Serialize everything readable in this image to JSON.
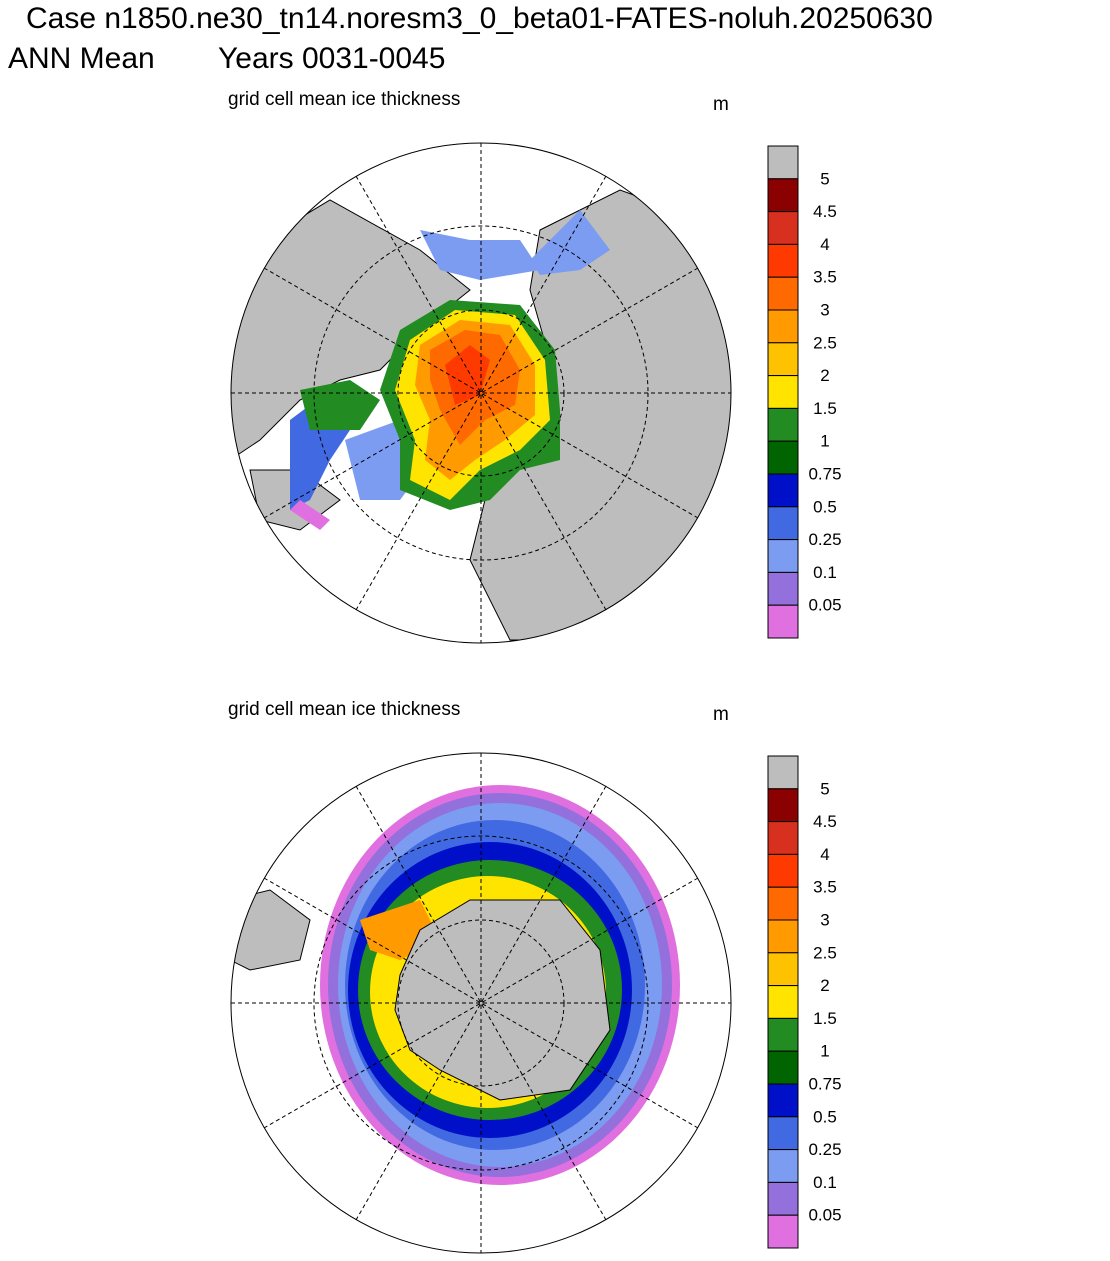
{
  "header": {
    "title": "Case n1850.ne30_tn14.noresm3_0_beta01-FATES-noluh.20250630",
    "season": "ANN Mean",
    "years": "Years 0031-0045"
  },
  "panels": [
    {
      "title": "grid cell mean ice thickness",
      "units": "m",
      "colorbar": {
        "labels": [
          "5",
          "4.5",
          "4",
          "3.5",
          "3",
          "2.5",
          "2",
          "1.5",
          "1",
          "0.75",
          "0.5",
          "0.25",
          "0.1",
          "0.05"
        ],
        "colors": [
          "#bdbdbd",
          "#8b0000",
          "#d7301f",
          "#ff3a00",
          "#ff6a00",
          "#ff9a00",
          "#ffc200",
          "#ffe400",
          "#228b22",
          "#006400",
          "#0010c8",
          "#4169e1",
          "#7b9cf0",
          "#9370db",
          "#e070e0"
        ]
      }
    },
    {
      "title": "grid cell mean ice thickness",
      "units": "m",
      "colorbar": {
        "labels": [
          "5",
          "4.5",
          "4",
          "3.5",
          "3",
          "2.5",
          "2",
          "1.5",
          "1",
          "0.75",
          "0.5",
          "0.25",
          "0.1",
          "0.05"
        ],
        "colors": [
          "#bdbdbd",
          "#8b0000",
          "#d7301f",
          "#ff3a00",
          "#ff6a00",
          "#ff9a00",
          "#ffc200",
          "#ffe400",
          "#228b22",
          "#006400",
          "#0010c8",
          "#4169e1",
          "#7b9cf0",
          "#9370db",
          "#e070e0"
        ]
      }
    }
  ]
}
